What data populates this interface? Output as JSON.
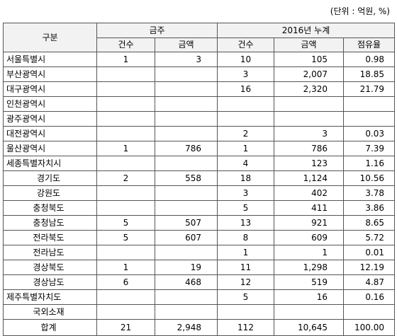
{
  "unit_note": "(단위 : 억원, %)",
  "headers": {
    "category": "구분",
    "group_month": "금주",
    "group_year": "2016년 누계",
    "count": "건수",
    "amount": "금액",
    "count2": "건수",
    "amount2": "금액",
    "share": "점유율"
  },
  "rows": [
    {
      "name": "서울특별시",
      "count": "1",
      "amount": "3",
      "count16": "10",
      "amount16": "105",
      "share": "0.98"
    },
    {
      "name": "부산광역시",
      "count": "",
      "amount": "",
      "count16": "3",
      "amount16": "2,007",
      "share": "18.85"
    },
    {
      "name": "대구광역시",
      "count": "",
      "amount": "",
      "count16": "16",
      "amount16": "2,320",
      "share": "21.79"
    },
    {
      "name": "인천광역시",
      "count": "",
      "amount": "",
      "count16": "",
      "amount16": "",
      "share": ""
    },
    {
      "name": "광주광역시",
      "count": "",
      "amount": "",
      "count16": "",
      "amount16": "",
      "share": ""
    },
    {
      "name": "대전광역시",
      "count": "",
      "amount": "",
      "count16": "2",
      "amount16": "3",
      "share": "0.03"
    },
    {
      "name": "울산광역시",
      "count": "1",
      "amount": "786",
      "count16": "1",
      "amount16": "786",
      "share": "7.39"
    },
    {
      "name": "세종특별자치시",
      "count": "",
      "amount": "",
      "count16": "4",
      "amount16": "123",
      "share": "1.16"
    },
    {
      "name": "경기도",
      "count": "2",
      "amount": "558",
      "count16": "18",
      "amount16": "1,124",
      "share": "10.56"
    },
    {
      "name": "강원도",
      "count": "",
      "amount": "",
      "count16": "3",
      "amount16": "402",
      "share": "3.78"
    },
    {
      "name": "충청북도",
      "count": "",
      "amount": "",
      "count16": "5",
      "amount16": "411",
      "share": "3.86"
    },
    {
      "name": "충청남도",
      "count": "5",
      "amount": "507",
      "count16": "13",
      "amount16": "921",
      "share": "8.65"
    },
    {
      "name": "전라북도",
      "count": "5",
      "amount": "607",
      "count16": "8",
      "amount16": "609",
      "share": "5.72"
    },
    {
      "name": "전라남도",
      "count": "",
      "amount": "",
      "count16": "1",
      "amount16": "1",
      "share": "0.01"
    },
    {
      "name": "경상북도",
      "count": "1",
      "amount": "19",
      "count16": "11",
      "amount16": "1,298",
      "share": "12.19"
    },
    {
      "name": "경상남도",
      "count": "6",
      "amount": "468",
      "count16": "12",
      "amount16": "519",
      "share": "4.87"
    },
    {
      "name": "제주특별자치도",
      "count": "",
      "amount": "",
      "count16": "5",
      "amount16": "16",
      "share": "0.16"
    },
    {
      "name": "국외소재",
      "count": "",
      "amount": "",
      "count16": "",
      "amount16": "",
      "share": ""
    },
    {
      "name": "합계",
      "count": "21",
      "amount": "2,948",
      "count16": "112",
      "amount16": "10,645",
      "share": "100.00"
    }
  ]
}
